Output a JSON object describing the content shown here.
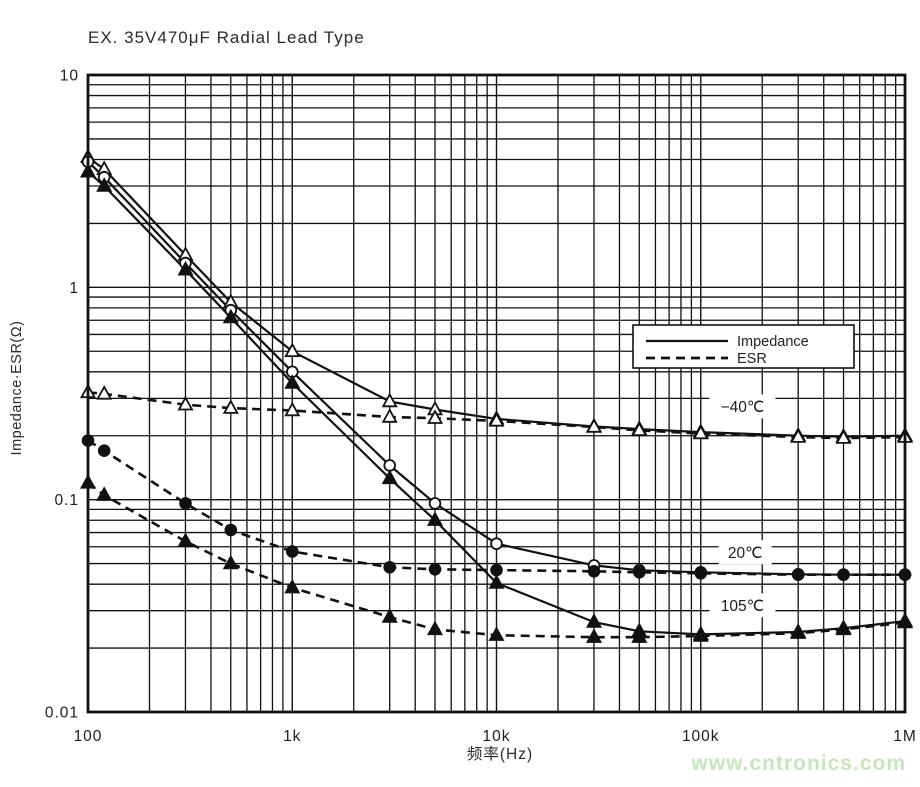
{
  "page": {
    "title": "EX. 35V470μF Radial Lead Type",
    "watermark": "www.cntronics.com",
    "watermark_color": "#c6e5be"
  },
  "chart_data": {
    "type": "line",
    "title": "EX. 35V470μF Radial Lead Type",
    "xlabel": "频率(Hz)",
    "ylabel": "Impedance·ESR(Ω)",
    "x_scale": "log",
    "y_scale": "log",
    "xlim": [
      100,
      1000000
    ],
    "ylim": [
      0.01,
      10
    ],
    "grid": "both-log-decades",
    "line_color": "#111111",
    "x_ticks": [
      {
        "f": 100,
        "label": "100"
      },
      {
        "f": 1000,
        "label": "1k"
      },
      {
        "f": 10000,
        "label": "10k"
      },
      {
        "f": 100000,
        "label": "100k"
      },
      {
        "f": 1000000,
        "label": "1M"
      }
    ],
    "y_ticks": [
      {
        "v": 10,
        "label": "10"
      },
      {
        "v": 1,
        "label": "1"
      },
      {
        "v": 0.1,
        "label": "0.1"
      },
      {
        "v": 0.01,
        "label": "0.01"
      }
    ],
    "x": [
      100,
      120,
      300,
      500,
      1000,
      3000,
      5000,
      10000,
      30000,
      50000,
      100000,
      300000,
      500000,
      1000000
    ],
    "series": [
      {
        "name": "Impedance −40℃",
        "line": "solid",
        "marker": "triangle-open",
        "values": [
          4.1,
          3.6,
          1.42,
          0.85,
          0.5,
          0.29,
          0.266,
          0.24,
          0.221,
          0.215,
          0.208,
          0.2,
          0.198,
          0.2
        ]
      },
      {
        "name": "Impedance 20℃",
        "line": "solid",
        "marker": "circle-open",
        "values": [
          3.9,
          3.3,
          1.3,
          0.78,
          0.4,
          0.145,
          0.096,
          0.062,
          0.049,
          0.0465,
          0.0455,
          0.0445,
          0.0443,
          0.0443
        ]
      },
      {
        "name": "Impedance 105℃",
        "line": "solid",
        "marker": "triangle-filled",
        "values": [
          3.5,
          3.0,
          1.21,
          0.72,
          0.354,
          0.126,
          0.08,
          0.0405,
          0.0265,
          0.024,
          0.0232,
          0.0238,
          0.0248,
          0.0268
        ]
      },
      {
        "name": "ESR −40℃",
        "line": "dashed",
        "marker": "triangle-open",
        "values": [
          0.32,
          0.315,
          0.28,
          0.27,
          0.263,
          0.245,
          0.242,
          0.235,
          0.22,
          0.212,
          0.205,
          0.197,
          0.195,
          0.197
        ]
      },
      {
        "name": "ESR 20℃",
        "line": "dashed",
        "marker": "circle-filled",
        "values": [
          0.19,
          0.17,
          0.096,
          0.072,
          0.057,
          0.048,
          0.047,
          0.0466,
          0.046,
          0.0455,
          0.045,
          0.0443,
          0.0443,
          0.0443
        ]
      },
      {
        "name": "ESR 105℃",
        "line": "dashed",
        "marker": "triangle-filled",
        "values": [
          0.12,
          0.105,
          0.0637,
          0.05,
          0.0385,
          0.028,
          0.0245,
          0.023,
          0.0225,
          0.0225,
          0.0228,
          0.0235,
          0.0245,
          0.0264
        ]
      }
    ],
    "legend": {
      "position": "inside-upper-right",
      "items": [
        {
          "label": "Impedance",
          "line": "solid"
        },
        {
          "label": "ESR",
          "line": "dashed"
        }
      ]
    },
    "annotations": [
      {
        "text": "−40℃",
        "f": 160000,
        "v": 0.275
      },
      {
        "text": "20℃",
        "f": 165000,
        "v": 0.0565
      },
      {
        "text": "105℃",
        "f": 160000,
        "v": 0.0318
      }
    ]
  }
}
